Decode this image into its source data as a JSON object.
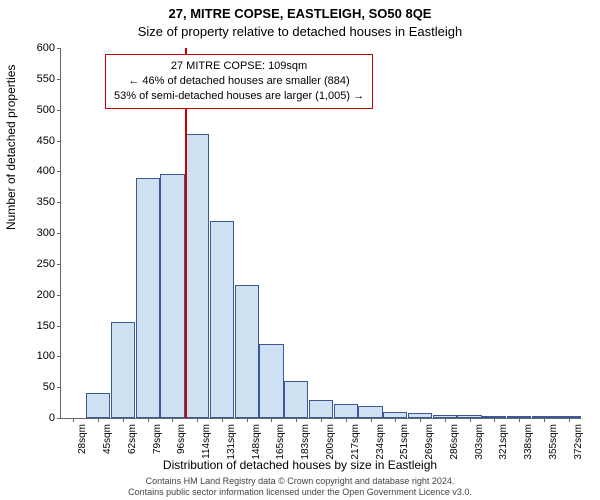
{
  "header": {
    "address": "27, MITRE COPSE, EASTLEIGH, SO50 8QE",
    "subtitle": "Size of property relative to detached houses in Eastleigh"
  },
  "chart": {
    "type": "histogram",
    "ylabel": "Number of detached properties",
    "xlabel": "Distribution of detached houses by size in Eastleigh",
    "ylim": [
      0,
      600
    ],
    "ytick_step": 50,
    "xticks": [
      "28sqm",
      "45sqm",
      "62sqm",
      "79sqm",
      "96sqm",
      "114sqm",
      "131sqm",
      "148sqm",
      "165sqm",
      "183sqm",
      "200sqm",
      "217sqm",
      "234sqm",
      "251sqm",
      "269sqm",
      "286sqm",
      "303sqm",
      "321sqm",
      "338sqm",
      "355sqm",
      "372sqm"
    ],
    "values": [
      0,
      40,
      155,
      390,
      395,
      460,
      320,
      215,
      120,
      60,
      30,
      22,
      20,
      10,
      8,
      5,
      5,
      3,
      2,
      2,
      1
    ],
    "bar_fill": "#cfe2f3",
    "bar_stroke": "#3b5998",
    "bar_width_ratio": 0.98,
    "background_color": "#ffffff",
    "axis_color": "#666666",
    "tick_fontsize": 11,
    "label_fontsize": 12,
    "reference_line": {
      "index": 5,
      "offset_within_bin": 0.02,
      "color": "#cc0000"
    },
    "annotation": {
      "border_color": "#cc0000",
      "lines": [
        "27 MITRE COPSE: 109sqm",
        "← 46% of detached houses are smaller (884)",
        "53% of semi-detached houses are larger (1,005) →"
      ]
    }
  },
  "footer": {
    "line1": "Contains HM Land Registry data © Crown copyright and database right 2024.",
    "line2": "Contains public sector information licensed under the Open Government Licence v3.0."
  }
}
